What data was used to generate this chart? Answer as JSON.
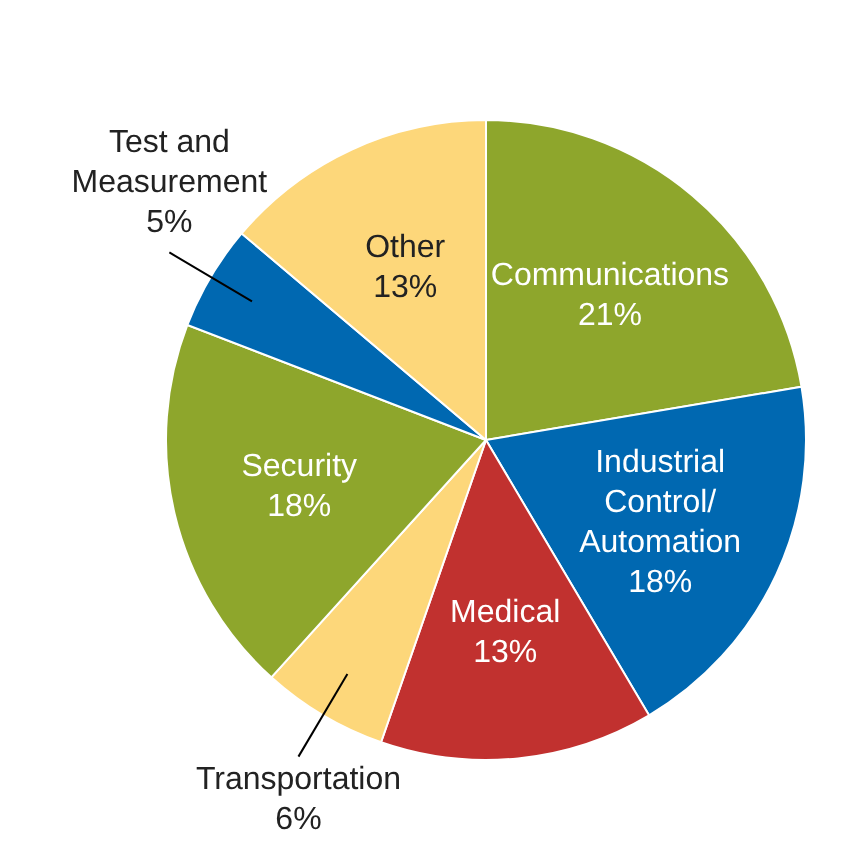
{
  "chart_data": {
    "type": "pie",
    "categories": [
      "Communications",
      "Industrial Control/ Automation",
      "Medical",
      "Transportation",
      "Security",
      "Test and Measurement",
      "Other"
    ],
    "values": [
      21,
      18,
      13,
      6,
      18,
      5,
      13
    ],
    "value_labels": [
      "21%",
      "18%",
      "13%",
      "6%",
      "18%",
      "5%",
      "13%"
    ],
    "colors": [
      "#8ea62c",
      "#0068b1",
      "#c1312f",
      "#fdd77a",
      "#8ea62c",
      "#0068b1",
      "#fdd77a"
    ]
  }
}
